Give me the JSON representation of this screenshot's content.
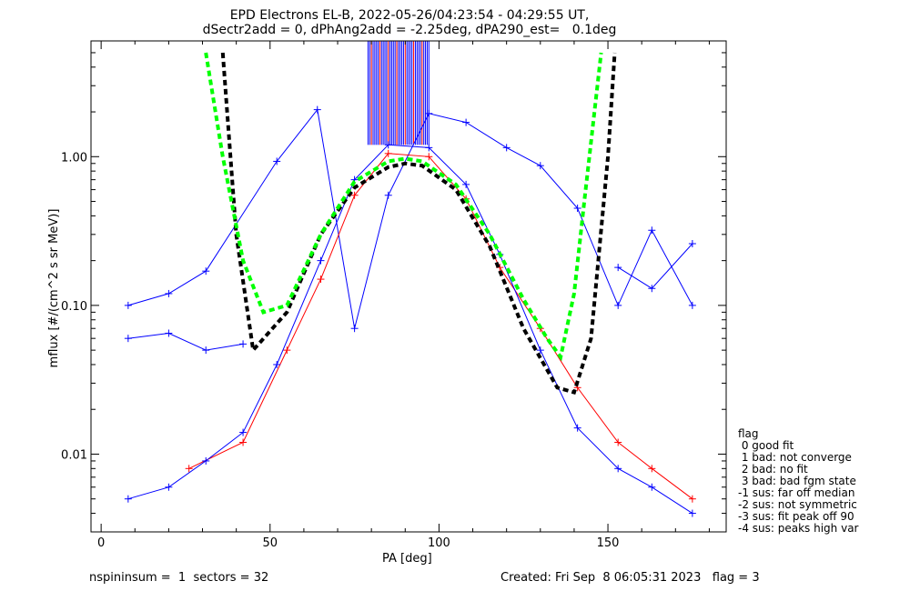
{
  "title_line1": "EPD Electrons EL-B, 2022-05-26/04:23:54 - 04:29:55 UT,",
  "title_line2": "dSectr2add = 0, dPhAng2add = -2.25deg, dPA290_est=   0.1deg",
  "footer": {
    "left": "nspininsum =  1  sectors = 32",
    "right": "Created: Fri Sep  8 06:05:31 2023   flag = 3"
  },
  "legend": {
    "title": "flag",
    "items": [
      " 0 good fit",
      " 1 bad: not converge",
      " 2 bad: no fit",
      " 3 bad: bad fgm state",
      "-1 sus: far off median",
      "-2 sus: not symmetric",
      "-3 sus: fit peak off 90",
      "-4 sus: peaks high var"
    ]
  },
  "colors": {
    "red": "#ff0000",
    "blue": "#0000ff",
    "black_fit": "#000000",
    "green_fit": "#00ff00"
  },
  "chart_data": {
    "type": "line",
    "xlabel": "PA [deg]",
    "ylabel": "mflux [#/(cm^2 s sr MeV)]",
    "xlim": [
      -3,
      185
    ],
    "ylim": [
      0.003,
      6.0
    ],
    "yscale": "log",
    "xticks": [
      "0",
      "50",
      "100",
      "150"
    ],
    "yticks": [
      "0.01",
      "0.10",
      "1.00"
    ],
    "grid": false,
    "series": [
      {
        "color": "blue",
        "style": "solid-plus",
        "x": [
          8,
          20,
          31,
          52,
          64,
          75,
          85,
          97,
          108,
          120,
          130,
          141,
          153,
          163,
          175
        ],
        "y": [
          0.1,
          0.12,
          0.17,
          0.93,
          2.07,
          0.07,
          0.55,
          1.95,
          1.7,
          1.15,
          0.87,
          0.45,
          0.1,
          0.32,
          0.1
        ]
      },
      {
        "color": "blue",
        "style": "solid-plus",
        "x": [
          153,
          163,
          175
        ],
        "y": [
          0.18,
          0.13,
          0.26
        ]
      },
      {
        "color": "blue",
        "style": "solid-plus",
        "x": [
          8,
          20,
          31,
          42
        ],
        "y": [
          0.06,
          0.065,
          0.05,
          0.055
        ]
      },
      {
        "color": "red",
        "style": "solid-plus",
        "x": [
          26,
          42,
          55,
          65,
          75,
          85,
          97,
          108,
          118,
          130,
          141,
          153,
          163,
          175
        ],
        "y": [
          0.008,
          0.012,
          0.05,
          0.15,
          0.55,
          1.05,
          1.0,
          0.52,
          0.18,
          0.07,
          0.028,
          0.012,
          0.008,
          0.005
        ]
      },
      {
        "color": "blue",
        "style": "solid-plus",
        "x": [
          8,
          20,
          31,
          42,
          52,
          65,
          75,
          85,
          97,
          108,
          118,
          130,
          141,
          153,
          163,
          175
        ],
        "y": [
          0.005,
          0.006,
          0.009,
          0.014,
          0.04,
          0.2,
          0.7,
          1.2,
          1.15,
          0.65,
          0.22,
          0.05,
          0.015,
          0.008,
          0.006,
          0.004
        ]
      }
    ],
    "fits": [
      {
        "color": "black_fit",
        "style": "dashed",
        "x": [
          36,
          40,
          45,
          55,
          65,
          75,
          85,
          90,
          95,
          105,
          115,
          125,
          135,
          140,
          145,
          150,
          152
        ],
        "y": [
          5.0,
          0.3,
          0.05,
          0.09,
          0.3,
          0.62,
          0.85,
          0.9,
          0.87,
          0.6,
          0.25,
          0.07,
          0.028,
          0.026,
          0.06,
          1.0,
          5.0
        ]
      },
      {
        "color": "green_fit",
        "style": "dashed",
        "x": [
          31,
          36,
          42,
          48,
          55,
          65,
          75,
          85,
          90,
          95,
          105,
          115,
          125,
          132,
          136,
          140,
          143,
          148
        ],
        "y": [
          5.0,
          1.0,
          0.2,
          0.09,
          0.1,
          0.3,
          0.68,
          0.93,
          0.97,
          0.93,
          0.65,
          0.3,
          0.11,
          0.06,
          0.045,
          0.12,
          0.5,
          5.0
        ]
      }
    ],
    "center_spike_band": {
      "x_range": [
        79,
        97
      ],
      "y_top": 6.0,
      "y_bottom": 1.2
    }
  }
}
